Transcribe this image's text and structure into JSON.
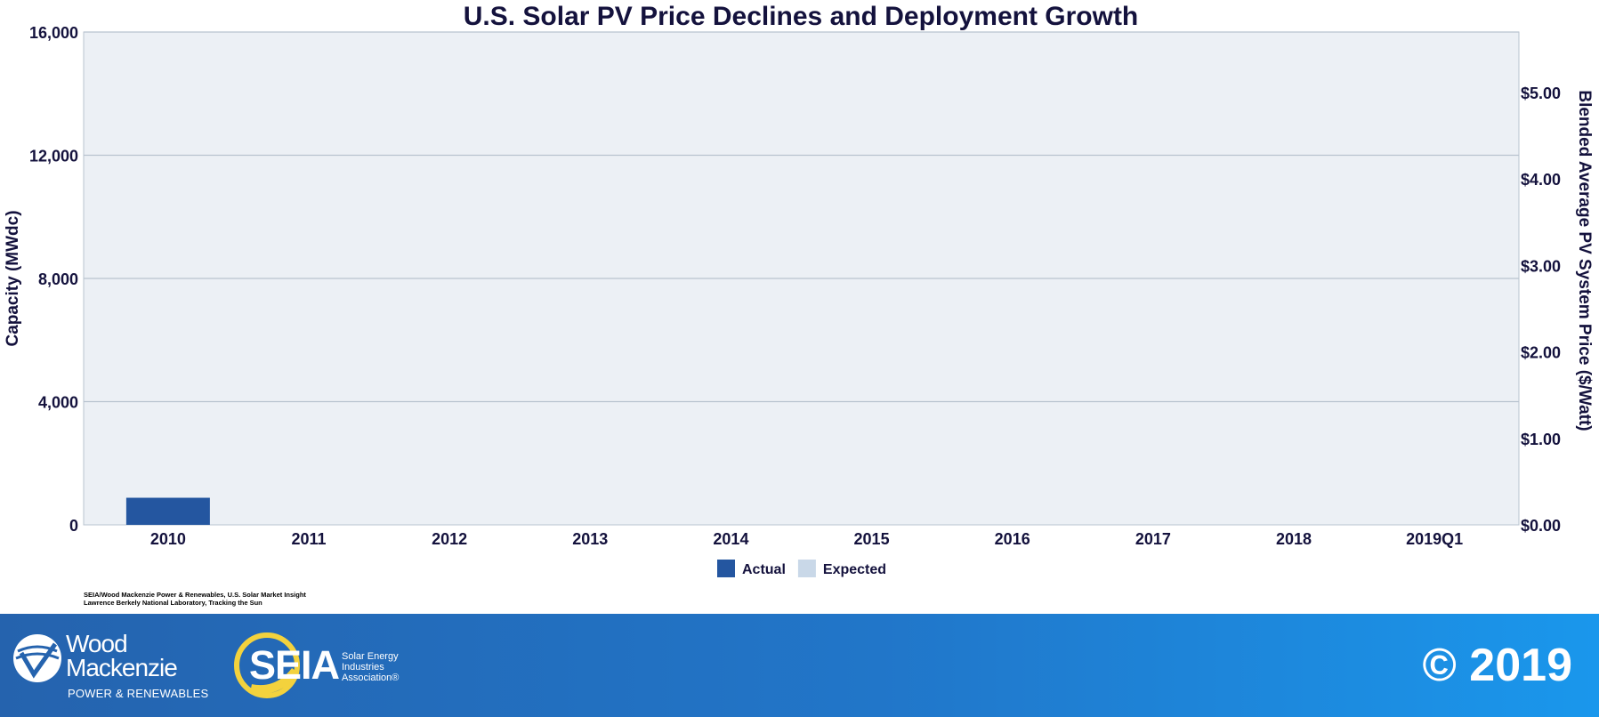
{
  "chart_data": {
    "type": "bar",
    "title": "U.S. Solar PV Price Declines and Deployment Growth",
    "categories": [
      "2010",
      "2011",
      "2012",
      "2013",
      "2014",
      "2015",
      "2016",
      "2017",
      "2018",
      "2019Q1"
    ],
    "series": [
      {
        "name": "Actual",
        "color": "#2456a0",
        "values": [
          880,
          null,
          null,
          null,
          null,
          null,
          null,
          null,
          null,
          null
        ]
      },
      {
        "name": "Expected",
        "color": "#c9d8e8",
        "values": [
          null,
          null,
          null,
          null,
          null,
          null,
          null,
          null,
          null,
          null
        ]
      }
    ],
    "ylabel": "Capacity (MWdc)",
    "ylim": [
      0,
      16000
    ],
    "yticks": [
      0,
      4000,
      8000,
      12000,
      16000
    ],
    "ytick_labels": [
      "0",
      "4,000",
      "8,000",
      "12,000",
      "16,000"
    ],
    "y2label": "Blended Average PV System Price ($/Watt)",
    "y2lim": [
      0,
      5.7
    ],
    "y2ticks": [
      0,
      1,
      2,
      3,
      4,
      5
    ],
    "y2tick_labels": [
      "$0.00",
      "$1.00",
      "$2.00",
      "$3.00",
      "$4.00",
      "$5.00"
    ],
    "grid": true,
    "legend": "bottom-center",
    "plot_background": "#ecf0f5"
  },
  "source": {
    "line1": "SEIA/Wood Mackenzie Power & Renewables, U.S. Solar Market Insight",
    "line2": "Lawrence Berkely National Laboratory, Tracking the Sun"
  },
  "footer": {
    "wm_name_1": "Wood",
    "wm_name_2": "Mackenzie",
    "wm_sub": "POWER & RENEWABLES",
    "seia_word": "SEIA",
    "seia_desc_1": "Solar Energy",
    "seia_desc_2": "Industries",
    "seia_desc_3": "Association®",
    "copyright": "© 2019",
    "colors": {
      "start": "#2563ae",
      "end": "#1a97ec"
    }
  }
}
